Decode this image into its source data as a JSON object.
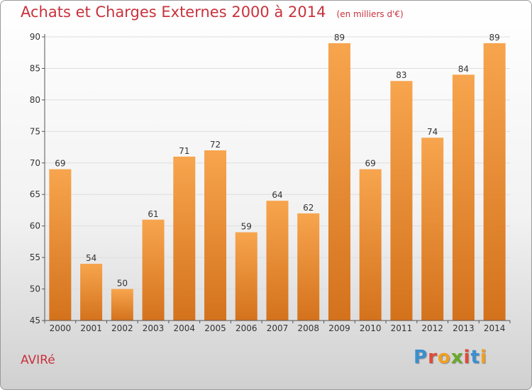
{
  "header": {
    "title": "Achats et Charges Externes 2000 à 2014",
    "unit": "(en milliers d'€)"
  },
  "footer": {
    "place": "AVIRé",
    "logo": "Proxiti"
  },
  "colors": {
    "bar_top": "#f7a54e",
    "bar_bottom": "#d4721c",
    "title": "#c8323c",
    "logo_letters": [
      "#3a8fd0",
      "#e04a3a",
      "#f0a020",
      "#6aaa2a",
      "#e04a3a",
      "#3a8fd0",
      "#f0a020"
    ]
  },
  "chart_data": {
    "type": "bar",
    "title": "Achats et Charges Externes 2000 à 2014",
    "categories": [
      "2000",
      "2001",
      "2002",
      "2003",
      "2004",
      "2005",
      "2006",
      "2007",
      "2008",
      "2009",
      "2010",
      "2011",
      "2012",
      "2013",
      "2014"
    ],
    "values": [
      69,
      54,
      50,
      61,
      71,
      72,
      59,
      64,
      62,
      89,
      69,
      83,
      74,
      84,
      89
    ],
    "ylim": [
      45,
      90
    ],
    "yticks": [
      45,
      50,
      55,
      60,
      65,
      70,
      75,
      80,
      85,
      90
    ],
    "grid": true,
    "legend": "none"
  }
}
